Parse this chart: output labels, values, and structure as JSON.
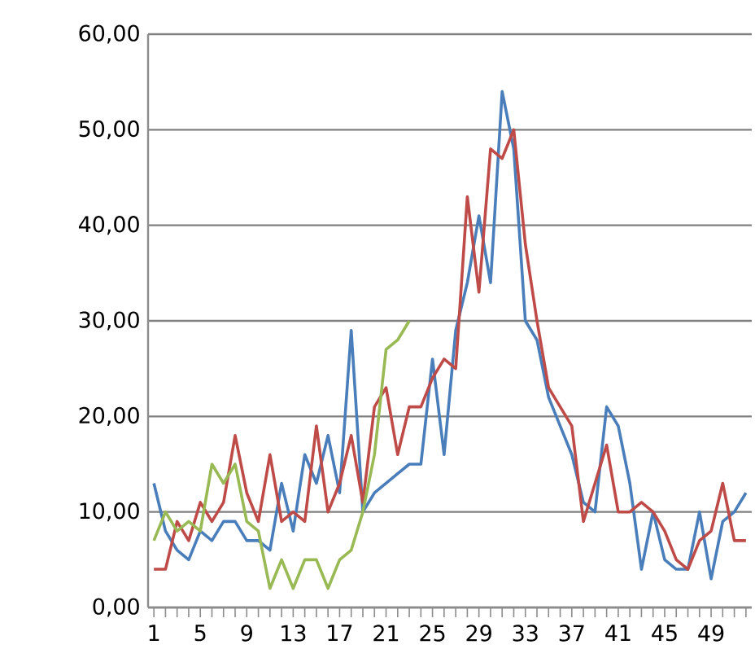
{
  "chart_data": {
    "type": "line",
    "categories": [
      "1",
      null,
      null,
      null,
      "5",
      null,
      null,
      null,
      "9",
      null,
      null,
      null,
      "13",
      null,
      null,
      null,
      "17",
      null,
      null,
      null,
      "21",
      null,
      null,
      null,
      "25",
      null,
      null,
      null,
      "29",
      null,
      null,
      null,
      "33",
      null,
      null,
      null,
      "37",
      null,
      null,
      null,
      "41",
      null,
      null,
      null,
      "45",
      null,
      null,
      null,
      "49",
      null,
      null,
      null
    ],
    "series": [
      {
        "color": "#4a7ebb",
        "values": [
          13,
          8,
          6,
          5,
          8,
          7,
          9,
          9,
          7,
          7,
          6,
          13,
          8,
          16,
          13,
          18,
          12,
          29,
          10,
          12,
          13,
          14,
          15,
          15,
          26,
          16,
          29,
          34,
          41,
          34,
          54,
          48,
          30,
          28,
          22,
          19,
          16,
          11,
          10,
          21,
          19,
          13,
          4,
          10,
          5,
          4,
          4,
          10,
          3,
          9,
          10,
          12
        ]
      },
      {
        "color": "#be4b48",
        "values": [
          4,
          4,
          9,
          7,
          11,
          9,
          11,
          18,
          12,
          9,
          16,
          9,
          10,
          9,
          19,
          10,
          13,
          18,
          11,
          21,
          23,
          16,
          21,
          21,
          24,
          26,
          25,
          43,
          33,
          48,
          47,
          50,
          38,
          30,
          23,
          21,
          19,
          9,
          13,
          17,
          10,
          10,
          11,
          10,
          8,
          5,
          4,
          7,
          8,
          13,
          7,
          7
        ]
      },
      {
        "color": "#98b954",
        "values": [
          7,
          10,
          8,
          9,
          8,
          15,
          13,
          15,
          9,
          8,
          2,
          5,
          2,
          5,
          5,
          2,
          5,
          6,
          10,
          16,
          27,
          28,
          30,
          null,
          null,
          null,
          null,
          null,
          null,
          null,
          null,
          null,
          null,
          null,
          null,
          null,
          null,
          null,
          null,
          null,
          null,
          null,
          null,
          null,
          null,
          null,
          null,
          null,
          null,
          null,
          null,
          null
        ]
      }
    ],
    "ylim": [
      0,
      60
    ],
    "yticks": [
      {
        "value": 0,
        "label": "0,00"
      },
      {
        "value": 10,
        "label": "10,00"
      },
      {
        "value": 20,
        "label": "20,00"
      },
      {
        "value": 30,
        "label": "30,00"
      },
      {
        "value": 40,
        "label": "40,00"
      },
      {
        "value": 50,
        "label": "50,00"
      },
      {
        "value": 60,
        "label": "60,00"
      }
    ],
    "grid": "y",
    "legend": false,
    "marker": "none",
    "line_style": "solid"
  }
}
